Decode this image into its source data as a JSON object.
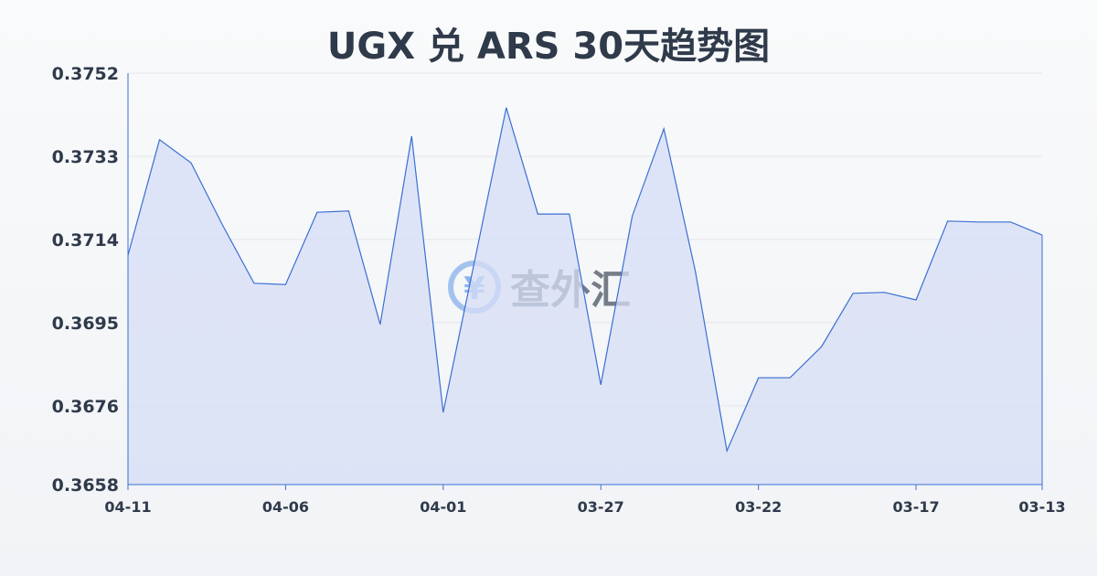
{
  "title": "UGX 兑 ARS 30天趋势图",
  "watermark": "查外汇",
  "chart_data": {
    "type": "area",
    "title": "UGX 兑 ARS 30天趋势图",
    "xlabel": "",
    "ylabel": "",
    "ylim": [
      0.3658,
      0.3752
    ],
    "yticks": [
      "0.3752",
      "0.3733",
      "0.3714",
      "0.3695",
      "0.3676",
      "0.3658"
    ],
    "xticks": [
      "04-11",
      "04-06",
      "04-01",
      "03-27",
      "03-22",
      "03-17",
      "03-13"
    ],
    "grid": true,
    "line_color": "#3b6fd4",
    "fill_color": "#d5def5",
    "x": [
      "04-11",
      "04-10",
      "04-09",
      "04-08",
      "04-07",
      "04-06",
      "04-05",
      "04-04",
      "04-03",
      "04-02",
      "04-01",
      "03-31",
      "03-30",
      "03-29",
      "03-28",
      "03-27",
      "03-26",
      "03-25",
      "03-24",
      "03-23",
      "03-22",
      "03-21",
      "03-20",
      "03-19",
      "03-18",
      "03-17",
      "03-16",
      "03-15",
      "03-14",
      "03-13"
    ],
    "values": [
      0.37104,
      0.37368,
      0.37315,
      0.37173,
      0.3704,
      0.37037,
      0.37202,
      0.37205,
      0.36946,
      0.37376,
      0.36745,
      0.37092,
      0.37441,
      0.37198,
      0.37198,
      0.36808,
      0.37194,
      0.37393,
      0.37067,
      0.36657,
      0.36824,
      0.36824,
      0.36895,
      0.37017,
      0.37019,
      0.37002,
      0.37182,
      0.3718,
      0.3718,
      0.3715
    ]
  }
}
